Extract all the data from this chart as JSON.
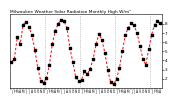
{
  "title": "Milwaukee Weather Solar Radiation Monthly High W/m²",
  "values": [
    3.8,
    4.2,
    6.5,
    5.8,
    7.9,
    8.2,
    7.6,
    6.8,
    5.1,
    3.2,
    1.8,
    1.5,
    2.1,
    3.5,
    5.8,
    7.2,
    8.0,
    8.4,
    8.3,
    7.5,
    5.4,
    3.8,
    2.2,
    1.7,
    1.9,
    2.8,
    2.5,
    3.1,
    4.2,
    5.8,
    6.9,
    6.2,
    4.8,
    2.9,
    1.6,
    1.4,
    2.0,
    3.2,
    5.0,
    6.8,
    7.5,
    8.1,
    7.8,
    7.0,
    5.6,
    4.2,
    3.5,
    5.2,
    6.8,
    7.9,
    8.3,
    8.1
  ],
  "line_color": "#ff0000",
  "marker_color": "#000000",
  "bg_color": "#ffffff",
  "ylim": [
    1.0,
    9.0
  ],
  "yticks": [
    2,
    3,
    4,
    5,
    6,
    7,
    8
  ],
  "ylabel_fontsize": 3.0,
  "title_fontsize": 3.2,
  "year_boundaries": [
    12,
    24,
    36,
    48
  ],
  "num_points": 52,
  "months_labels": [
    "J",
    "F",
    "M",
    "A",
    "M",
    "J",
    "J",
    "A",
    "S",
    "O",
    "N",
    "D",
    "J",
    "F",
    "M",
    "A",
    "M",
    "J",
    "J",
    "A",
    "S",
    "O",
    "N",
    "D",
    "J",
    "F",
    "M",
    "A",
    "M",
    "J",
    "J",
    "A",
    "S",
    "O",
    "N",
    "D",
    "J",
    "F",
    "M",
    "A",
    "M",
    "J",
    "J",
    "A",
    "S",
    "O",
    "N",
    "D",
    "J",
    "F",
    "M",
    "A"
  ]
}
